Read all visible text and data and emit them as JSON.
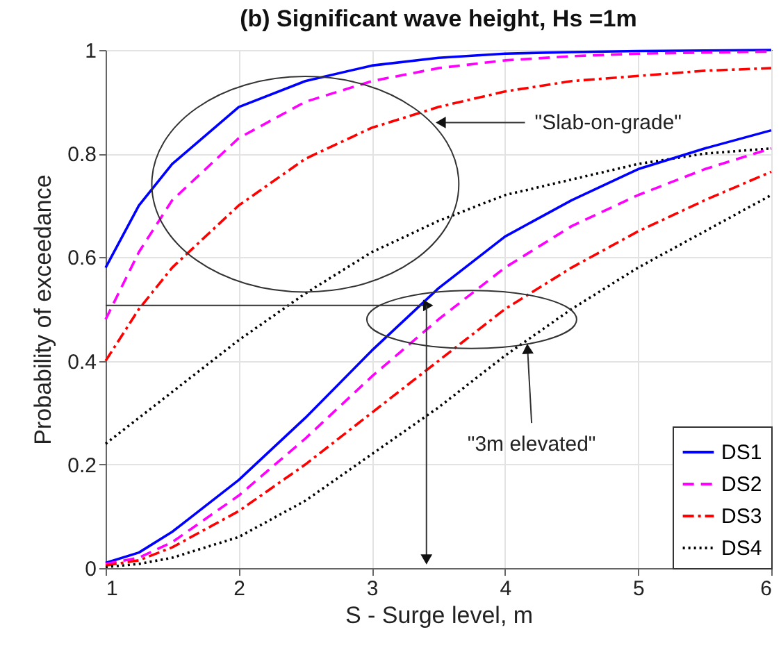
{
  "chart_data": {
    "type": "line",
    "title": "(b) Significant wave height, Hs =1m",
    "xlabel": "S - Surge level, m",
    "ylabel": "Probability of exceedance",
    "xlim": [
      1,
      6
    ],
    "ylim": [
      0,
      1
    ],
    "xticks": [
      1,
      2,
      3,
      4,
      5,
      6
    ],
    "yticks": [
      0,
      0.2,
      0.4,
      0.6,
      0.8,
      1
    ],
    "grid": true,
    "legend": "bottom right",
    "marker": "none",
    "x": [
      1,
      1.25,
      1.5,
      2,
      2.5,
      3,
      3.5,
      4,
      4.5,
      5,
      5.5,
      6
    ],
    "series": [
      {
        "name": "DS1",
        "color": "#0000ff",
        "line_style": "solid",
        "values": [
          0.58,
          0.7,
          0.78,
          0.89,
          0.94,
          0.97,
          0.985,
          0.993,
          0.996,
          0.998,
          0.999,
          1.0
        ]
      },
      {
        "name": "DS2",
        "color": "#ff00ff",
        "line_style": "dashed",
        "values": [
          0.48,
          0.61,
          0.71,
          0.83,
          0.9,
          0.94,
          0.965,
          0.98,
          0.988,
          0.993,
          0.995,
          0.997
        ]
      },
      {
        "name": "DS3",
        "color": "#ff0000",
        "line_style": "dashdot",
        "values": [
          0.4,
          0.5,
          0.58,
          0.7,
          0.79,
          0.85,
          0.89,
          0.92,
          0.94,
          0.95,
          0.96,
          0.965
        ]
      },
      {
        "name": "DS4",
        "color": "#000000",
        "line_style": "dotted",
        "values": [
          0.24,
          0.29,
          0.34,
          0.44,
          0.53,
          0.61,
          0.67,
          0.72,
          0.75,
          0.78,
          0.8,
          0.81
        ]
      },
      {
        "color": "#0000ff",
        "line_style": "solid",
        "values": [
          0.01,
          0.03,
          0.07,
          0.17,
          0.29,
          0.42,
          0.54,
          0.64,
          0.71,
          0.77,
          0.81,
          0.845
        ]
      },
      {
        "color": "#ff00ff",
        "line_style": "dashed",
        "values": [
          0.008,
          0.02,
          0.05,
          0.14,
          0.25,
          0.37,
          0.48,
          0.58,
          0.66,
          0.72,
          0.77,
          0.81
        ]
      },
      {
        "color": "#ff0000",
        "line_style": "dashdot",
        "values": [
          0.005,
          0.015,
          0.04,
          0.11,
          0.2,
          0.3,
          0.4,
          0.5,
          0.58,
          0.65,
          0.71,
          0.765
        ]
      },
      {
        "color": "#000000",
        "line_style": "dotted",
        "values": [
          0.002,
          0.008,
          0.02,
          0.06,
          0.13,
          0.22,
          0.31,
          0.41,
          0.5,
          0.58,
          0.65,
          0.72
        ]
      }
    ],
    "annotations": [
      {
        "text": "\"Slab-on-grade\"",
        "x": 3.53,
        "y": 0.86
      },
      {
        "text": "\"3m elevated\"",
        "x": 4.17,
        "y": 0.42
      }
    ]
  }
}
